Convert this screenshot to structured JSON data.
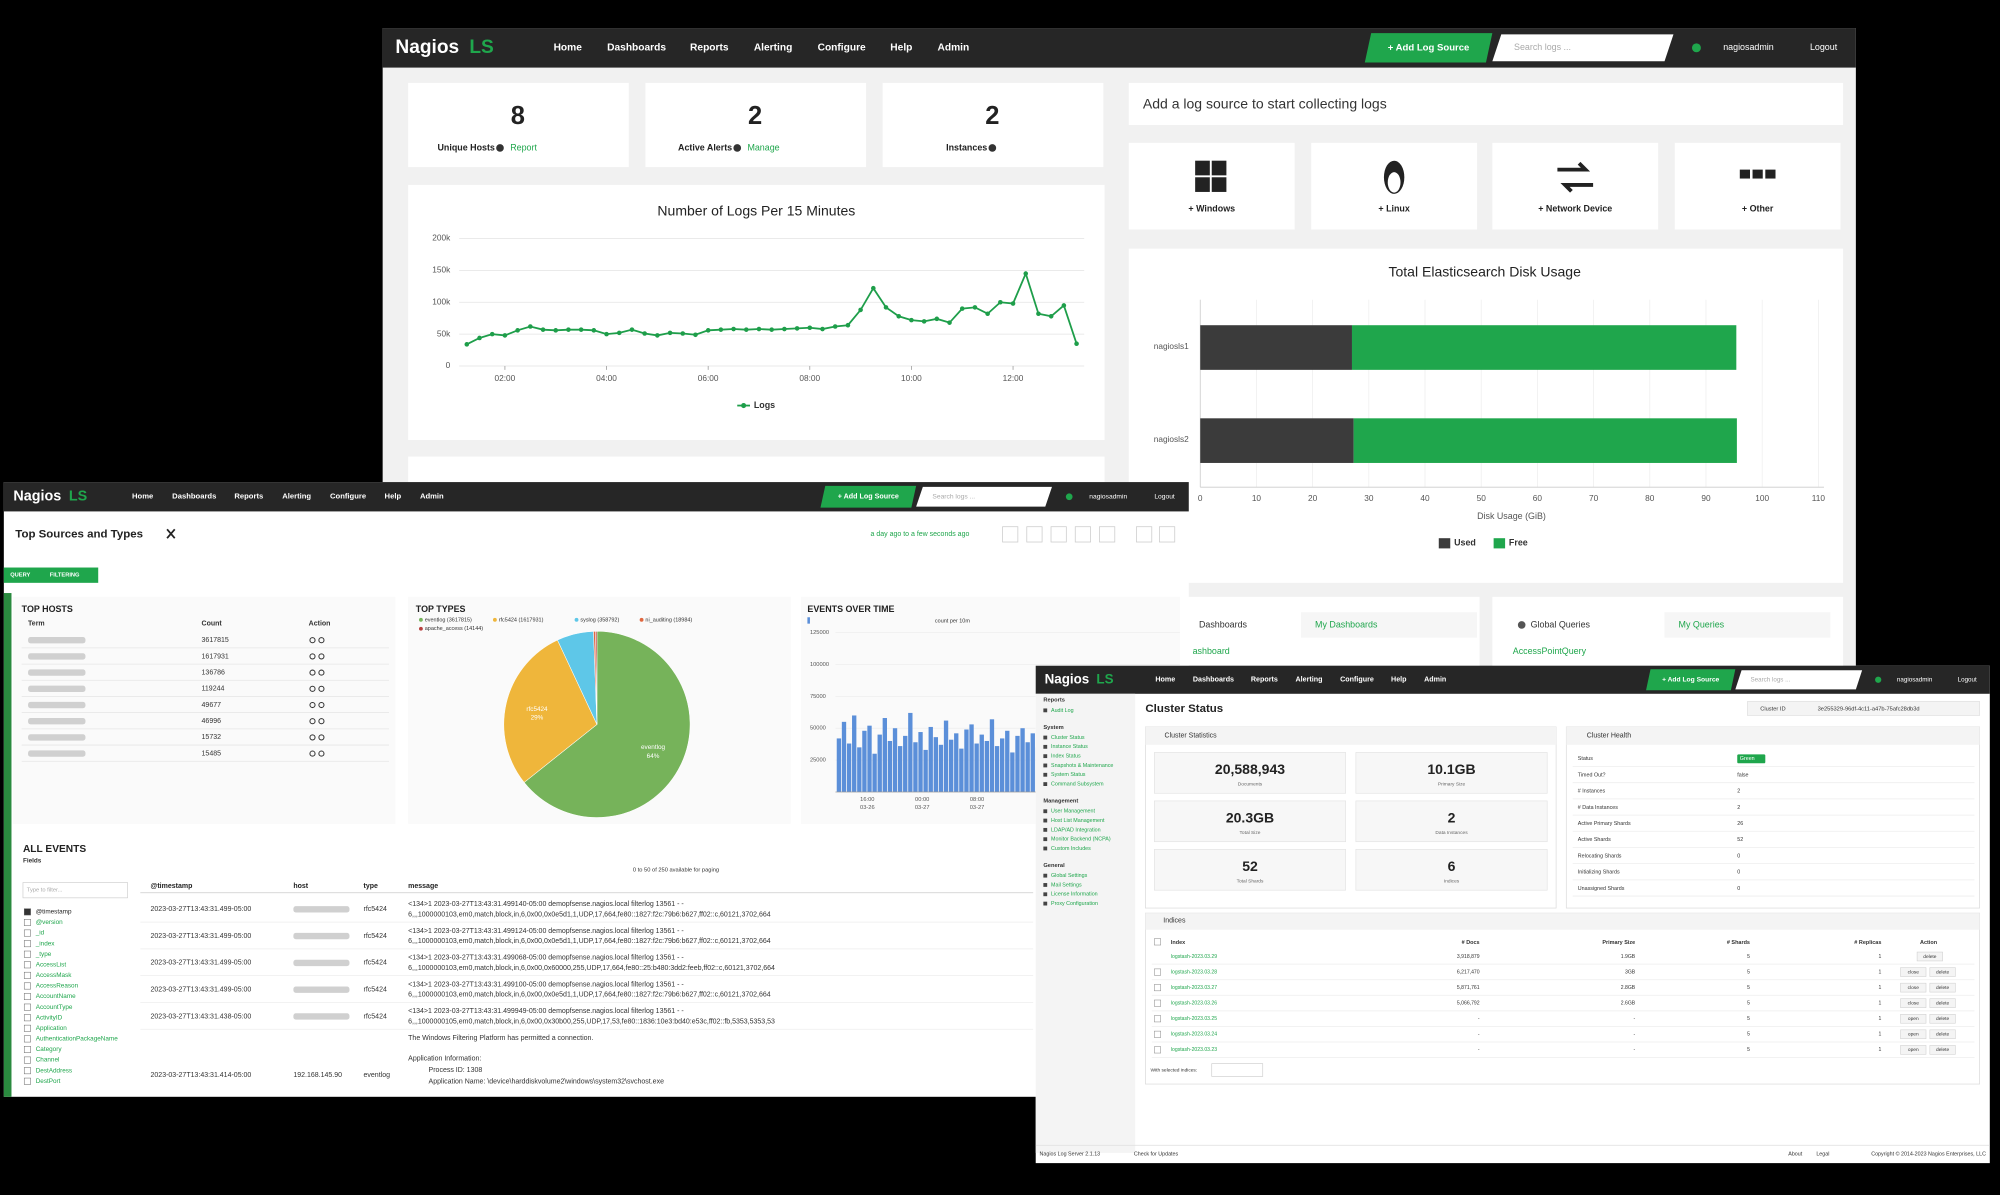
{
  "nav": {
    "brand": "Nagios",
    "brand_suffix": "LS",
    "menu": [
      "Home",
      "Dashboards",
      "Reports",
      "Alerting",
      "Configure",
      "Help",
      "Admin"
    ],
    "add_button": "+ Add Log Source",
    "search_placeholder": "Search logs ...",
    "user": "nagiosadmin",
    "logout": "Logout"
  },
  "home": {
    "stats": [
      {
        "value": 8,
        "label": "Unique Hosts",
        "link": "Report"
      },
      {
        "value": 2,
        "label": "Active Alerts",
        "link": "Manage"
      },
      {
        "value": 2,
        "label": "Instances"
      }
    ],
    "logs_chart": {
      "type": "line",
      "title": "Number of Logs Per 15 Minutes",
      "legend": "Logs",
      "color": "#1e9e4a",
      "x": [
        1.25,
        1.5,
        1.75,
        2,
        2.25,
        2.5,
        2.75,
        3,
        3.25,
        3.5,
        3.75,
        4,
        4.25,
        4.5,
        4.75,
        5,
        5.25,
        5.5,
        5.75,
        6,
        6.25,
        6.5,
        6.75,
        7,
        7.25,
        7.5,
        7.75,
        8,
        8.25,
        8.5,
        8.75,
        9,
        9.25,
        9.5,
        9.75,
        10,
        10.25,
        10.5,
        10.75,
        11,
        11.25,
        11.5,
        11.75,
        12,
        12.25,
        12.5,
        12.75,
        13,
        13.25
      ],
      "values": [
        34000,
        44000,
        50000,
        48000,
        56000,
        62000,
        57000,
        56000,
        57000,
        57000,
        56000,
        50000,
        52000,
        57000,
        51000,
        48000,
        52000,
        51000,
        49000,
        56000,
        57000,
        58000,
        57000,
        58000,
        57000,
        58000,
        59000,
        60000,
        58000,
        62000,
        64000,
        88000,
        122000,
        92000,
        78000,
        72000,
        70000,
        74000,
        68000,
        90000,
        92000,
        82000,
        100000,
        98000,
        145000,
        82000,
        78000,
        95000,
        35000
      ],
      "xlim": [
        1.1,
        13.4
      ],
      "xticks": [
        {
          "value": 2,
          "label": "02:00"
        },
        {
          "value": 4,
          "label": "04:00"
        },
        {
          "value": 6,
          "label": "06:00"
        },
        {
          "value": 8,
          "label": "08:00"
        },
        {
          "value": 10,
          "label": "10:00"
        },
        {
          "value": 12,
          "label": "12:00"
        }
      ],
      "ylim": [
        0,
        200000
      ],
      "yticks": [
        0,
        {
          "value": 50000,
          "label": "50k"
        },
        {
          "value": 100000,
          "label": "100k"
        },
        {
          "value": 150000,
          "label": "150k"
        },
        {
          "value": 200000,
          "label": "200k"
        }
      ],
      "grid": true
    },
    "log_sources": {
      "title": "Add a log source to start collecting logs",
      "tiles": [
        "+ Windows",
        "+ Linux",
        "+ Network Device",
        "+ Other"
      ]
    },
    "disk_chart": {
      "type": "bar",
      "orientation": "horizontal",
      "stacked": true,
      "title": "Total Elasticsearch Disk Usage",
      "categories": [
        "nagiosls1",
        "nagiosls2"
      ],
      "series": [
        {
          "name": "Used",
          "color": "#3b3b3b",
          "values": [
            27,
            27.3
          ]
        },
        {
          "name": "Free",
          "color": "#1fa64c",
          "values": [
            68.4,
            68.2
          ]
        }
      ],
      "xlim": [
        0,
        111
      ],
      "xticks": [
        0,
        10,
        20,
        30,
        40,
        50,
        60,
        70,
        80,
        90,
        100,
        110
      ],
      "xlabel": "Disk Usage (GiB)",
      "grid": true
    },
    "tabs": [
      "Dashboards",
      "My Dashboards",
      "Global Queries",
      "My Queries"
    ],
    "dash_link": "ashboard",
    "query_link": "AccessPointQuery"
  },
  "sources": {
    "title": "Top Sources and Types",
    "timerange": "a day ago to a few seconds ago",
    "tags": [
      "QUERY",
      "FILTERING"
    ],
    "top_hosts": {
      "title": "TOP HOSTS",
      "columns": [
        "Term",
        "Count",
        "Action"
      ],
      "counts": [
        3617815,
        1617931,
        136786,
        119244,
        49677,
        46996,
        15732,
        15485
      ]
    },
    "top_types": {
      "type": "pie",
      "title": "TOP TYPES",
      "categories": [
        "eventlog",
        "rfc5424",
        "syslog",
        "ni_auditing",
        "apache_access"
      ],
      "values": [
        3617815,
        1617931,
        358792,
        18984,
        14144
      ],
      "colors": [
        "#76b35a",
        "#efb63b",
        "#5ec7e8",
        "#e0673f",
        "#b8403e"
      ],
      "legend": [
        "eventlog (3617815)",
        "rfc5424 (1617931)",
        "syslog (358792)",
        "ni_auditing (18984)",
        "apache_access (14144)"
      ],
      "slice_labels": [
        [
          "eventlog",
          "64%"
        ],
        [
          "rfc5424",
          "29%"
        ]
      ]
    },
    "events_over_time": {
      "type": "bar",
      "title": "EVENTS OVER TIME",
      "legend": "count per 10m",
      "color": "#5b8fd9",
      "values": [
        42000,
        55000,
        38000,
        60000,
        35000,
        48000,
        52000,
        30000,
        45000,
        58000,
        40000,
        50000,
        36000,
        44000,
        62000,
        39000,
        47000,
        33000,
        51000,
        43000,
        37000,
        56000,
        41000,
        46000,
        34000,
        49000,
        53000,
        38000,
        45000,
        40000,
        57000,
        36000,
        42000,
        48000,
        31000,
        44000,
        50000,
        39000,
        46000,
        35000
      ],
      "ylim": [
        0,
        125000
      ],
      "yticks": [
        25000,
        50000,
        75000,
        100000,
        125000
      ],
      "xtick_labels": [
        [
          "16:00",
          "03-26"
        ],
        [
          "00:00",
          "03-27"
        ],
        [
          "08:00",
          "03-27"
        ]
      ]
    },
    "all_events": {
      "title": "ALL EVENTS",
      "fields_title": "Fields",
      "paging": "0 to 50 of 250 available for paging",
      "filter_placeholder": "Type to filter...",
      "fields": [
        "@timestamp",
        "@version",
        "_id",
        "_index",
        "_type",
        "AccessList",
        "AccessMask",
        "AccessReason",
        "AccountName",
        "AccountType",
        "ActivityID",
        "Application",
        "AuthenticationPackageName",
        "Category",
        "Channel",
        "DestAddress",
        "DestPort"
      ],
      "columns": [
        "@timestamp",
        "host",
        "type",
        "message"
      ],
      "rows": [
        {
          "timestamp": "2023-03-27T13:43:31.499-05:00",
          "type": "rfc5424",
          "message": [
            "<134>1 2023-03-27T13:43:31.499140-05:00 demopfsense.nagios.local filterlog 13561 - -",
            "6,,,1000000103,em0,match,block,in,6,0x00,0x0e5d1,1,UDP,17,664,fe80::1827:f2c:79b6:b627,ff02::c,60121,3702,664"
          ]
        },
        {
          "timestamp": "2023-03-27T13:43:31.499-05:00",
          "type": "rfc5424",
          "message": [
            "<134>1 2023-03-27T13:43:31.499124-05:00 demopfsense.nagios.local filterlog 13561 - -",
            "6,,,1000000103,em0,match,block,in,6,0x00,0x0e5d1,1,UDP,17,664,fe80::1827:f2c:79b6:b627,ff02::c,60121,3702,664"
          ]
        },
        {
          "timestamp": "2023-03-27T13:43:31.499-05:00",
          "type": "rfc5424",
          "message": [
            "<134>1 2023-03-27T13:43:31.499068-05:00 demopfsense.nagios.local filterlog 13561 - -",
            "6,,,1000000103,em0,match,block,in,6,0x00,0x60000,255,UDP,17,664,fe80::25:b480:3dd2:feeb,ff02::c,60121,3702,664"
          ]
        },
        {
          "timestamp": "2023-03-27T13:43:31.499-05:00",
          "type": "rfc5424",
          "message": [
            "<134>1 2023-03-27T13:43:31.499100-05:00 demopfsense.nagios.local filterlog 13561 - -",
            "6,,,1000000103,em0,match,block,in,6,0x00,0x0e5d1,1,UDP,17,664,fe80::1827:f2c:79b6:b627,ff02::c,60121,3702,664"
          ]
        },
        {
          "timestamp": "2023-03-27T13:43:31.438-05:00",
          "type": "rfc5424",
          "message": [
            "<134>1 2023-03-27T13:43:31.499949-05:00 demopfsense.nagios.local filterlog 13561 - -",
            "6,,,1000000105,em0,match,block,in,6,0x00,0x30b00,255,UDP,17,53,fe80::1836:10e3:bd40:e53c,ff02::fb,5353,5353,53"
          ]
        },
        {
          "timestamp": "2023-03-27T13:43:31.414-05:00",
          "host": "192.168.145.90",
          "type": "eventlog",
          "message": [
            "The Windows Filtering Platform has permitted a connection.",
            "Application Information:",
            "Process ID:   1308",
            "Application Name:   \\device\\harddiskvolume2\\windows\\system32\\svchost.exe"
          ]
        }
      ]
    }
  },
  "cluster": {
    "sidebar": [
      {
        "heading": "Reports",
        "items": [
          "Audit Log"
        ]
      },
      {
        "heading": "System",
        "items": [
          "Cluster Status",
          "Instance Status",
          "Index Status",
          "Snapshots & Maintenance",
          "System Status",
          "Command Subsystem"
        ]
      },
      {
        "heading": "Management",
        "items": [
          "User Management",
          "Host List Management",
          "LDAP/AD Integration",
          "Monitor Backend (NCPA)",
          "Custom Includes"
        ]
      },
      {
        "heading": "General",
        "items": [
          "Global Settings",
          "Mail Settings",
          "License Information",
          "Proxy Configuration"
        ]
      }
    ],
    "title": "Cluster Status",
    "cluster_id_label": "Cluster ID",
    "cluster_id": "3e255329-96df-4c11-a47b-75afc28db3d",
    "stats_title": "Cluster Statistics",
    "stats": [
      [
        "20,588,943",
        "Documents"
      ],
      [
        "10.1GB",
        "Primary Size"
      ],
      [
        "20.3GB",
        "Total Size"
      ],
      [
        "2",
        "Data Instances"
      ],
      [
        "52",
        "Total Shards"
      ],
      [
        "6",
        "Indices"
      ]
    ],
    "health_title": "Cluster Health",
    "health": [
      [
        "Status",
        "Green"
      ],
      [
        "Timed Out?",
        "false"
      ],
      [
        "# Instances",
        "2"
      ],
      [
        "# Data Instances",
        "2"
      ],
      [
        "Active Primary Shards",
        "26"
      ],
      [
        "Active Shards",
        "52"
      ],
      [
        "Relocating Shards",
        "0"
      ],
      [
        "Initializing Shards",
        "0"
      ],
      [
        "Unassigned Shards",
        "0"
      ]
    ],
    "indices_title": "Indices",
    "index_columns": [
      "Index",
      "# Docs",
      "Primary Size",
      "# Shards",
      "# Replicas",
      "Action"
    ],
    "indices": [
      [
        "logstash-2023.03.29",
        "3,918,879",
        "1.9GB",
        "5",
        "1"
      ],
      [
        "logstash-2023.03.28",
        "6,217,470",
        "3GB",
        "5",
        "1"
      ],
      [
        "logstash-2023.03.27",
        "5,871,761",
        "2.8GB",
        "5",
        "1"
      ],
      [
        "logstash-2023.03.26",
        "5,066,792",
        "2.6GB",
        "5",
        "1"
      ],
      [
        "logstash-2023.03.25",
        "-",
        "-",
        "5",
        "1"
      ],
      [
        "logstash-2023.03.24",
        "-",
        "-",
        "5",
        "1"
      ],
      [
        "logstash-2023.03.23",
        "-",
        "-",
        "5",
        "1"
      ]
    ],
    "index_actions": [
      [
        "delete"
      ],
      [
        "close",
        "delete"
      ],
      [
        "close",
        "delete"
      ],
      [
        "close",
        "delete"
      ],
      [
        "open",
        "delete"
      ],
      [
        "open",
        "delete"
      ],
      [
        "open",
        "delete"
      ]
    ],
    "bulk_label": "With selected indices:",
    "footer": {
      "version": "Nagios Log Server 2.1.13",
      "updates": "Check for Updates",
      "about": "About",
      "legal": "Legal",
      "copyright": "Copyright © 2014-2023 Nagios Enterprises, LLC"
    }
  }
}
